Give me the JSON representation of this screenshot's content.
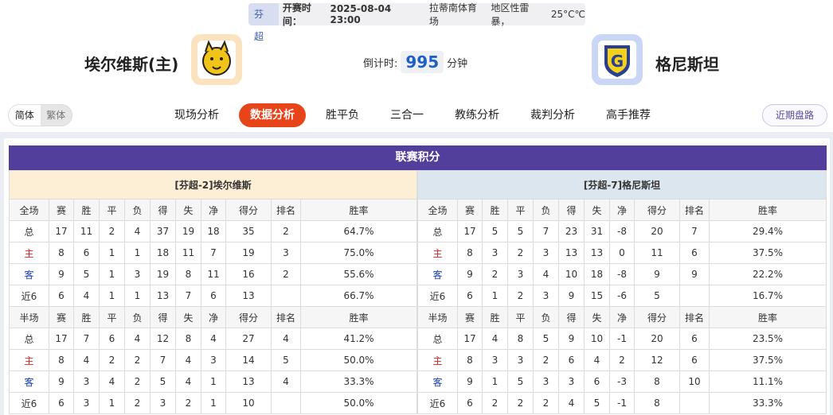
{
  "header": {
    "league": "芬超",
    "time_label": "开赛时间：",
    "time": "2025-08-04 23:00",
    "venue": "拉蒂南体育场",
    "weather": "地区性雷暴，",
    "temp": "25°C℃",
    "home_team": "埃尔维斯(主)",
    "away_team": "格尼斯坦",
    "countdown_label": "倒计时:",
    "countdown_value": "995",
    "countdown_unit": "分钟"
  },
  "lang": {
    "simplified": "简体",
    "traditional": "繁体"
  },
  "nav": [
    "现场分析",
    "数据分析",
    "胜平负",
    "三合一",
    "教练分析",
    "裁判分析",
    "高手推荐"
  ],
  "nav_active": "数据分析",
  "recent_button": "近期盘路",
  "section_title": "联赛积分",
  "colors": {
    "accent": "#e8441a",
    "title_bar": "#523f9c",
    "home_bg": "#fcefd6",
    "away_bg": "#dce6ee"
  },
  "tables": [
    {
      "caption": "[芬超-2]埃尔维斯",
      "full_headers": [
        "全场",
        "赛",
        "胜",
        "平",
        "负",
        "得",
        "失",
        "净",
        "得分",
        "排名",
        "胜率"
      ],
      "full_rows": [
        [
          "总",
          "17",
          "11",
          "2",
          "4",
          "37",
          "19",
          "18",
          "35",
          "2",
          "64.7%"
        ],
        [
          "主",
          "8",
          "6",
          "1",
          "1",
          "18",
          "11",
          "7",
          "19",
          "3",
          "75.0%"
        ],
        [
          "客",
          "9",
          "5",
          "1",
          "3",
          "19",
          "8",
          "11",
          "16",
          "2",
          "55.6%"
        ],
        [
          "近6",
          "6",
          "4",
          "1",
          "1",
          "13",
          "7",
          "6",
          "13",
          "",
          "66.7%"
        ]
      ],
      "half_headers": [
        "半场",
        "赛",
        "胜",
        "平",
        "负",
        "得",
        "失",
        "净",
        "得分",
        "排名",
        "胜率"
      ],
      "half_rows": [
        [
          "总",
          "17",
          "7",
          "6",
          "4",
          "12",
          "8",
          "4",
          "27",
          "4",
          "41.2%"
        ],
        [
          "主",
          "8",
          "4",
          "2",
          "2",
          "7",
          "4",
          "3",
          "14",
          "5",
          "50.0%"
        ],
        [
          "客",
          "9",
          "3",
          "4",
          "2",
          "5",
          "4",
          "1",
          "13",
          "4",
          "33.3%"
        ],
        [
          "近6",
          "6",
          "3",
          "1",
          "2",
          "3",
          "2",
          "1",
          "10",
          "",
          "50.0%"
        ]
      ]
    },
    {
      "caption": "[芬超-7]格尼斯坦",
      "full_headers": [
        "全场",
        "赛",
        "胜",
        "平",
        "负",
        "得",
        "失",
        "净",
        "得分",
        "排名",
        "胜率"
      ],
      "full_rows": [
        [
          "总",
          "17",
          "5",
          "5",
          "7",
          "23",
          "31",
          "-8",
          "20",
          "7",
          "29.4%"
        ],
        [
          "主",
          "8",
          "3",
          "2",
          "3",
          "13",
          "13",
          "0",
          "11",
          "6",
          "37.5%"
        ],
        [
          "客",
          "9",
          "2",
          "3",
          "4",
          "10",
          "18",
          "-8",
          "9",
          "9",
          "22.2%"
        ],
        [
          "近6",
          "6",
          "1",
          "2",
          "3",
          "9",
          "15",
          "-6",
          "5",
          "",
          "16.7%"
        ]
      ],
      "half_headers": [
        "半场",
        "赛",
        "胜",
        "平",
        "负",
        "得",
        "失",
        "净",
        "得分",
        "排名",
        "胜率"
      ],
      "half_rows": [
        [
          "总",
          "17",
          "4",
          "8",
          "5",
          "9",
          "10",
          "-1",
          "20",
          "6",
          "23.5%"
        ],
        [
          "主",
          "8",
          "3",
          "3",
          "2",
          "6",
          "4",
          "2",
          "12",
          "6",
          "37.5%"
        ],
        [
          "客",
          "9",
          "1",
          "5",
          "3",
          "3",
          "6",
          "-3",
          "8",
          "10",
          "11.1%"
        ],
        [
          "近6",
          "6",
          "2",
          "2",
          "2",
          "4",
          "5",
          "-1",
          "8",
          "",
          "33.3%"
        ]
      ]
    }
  ]
}
